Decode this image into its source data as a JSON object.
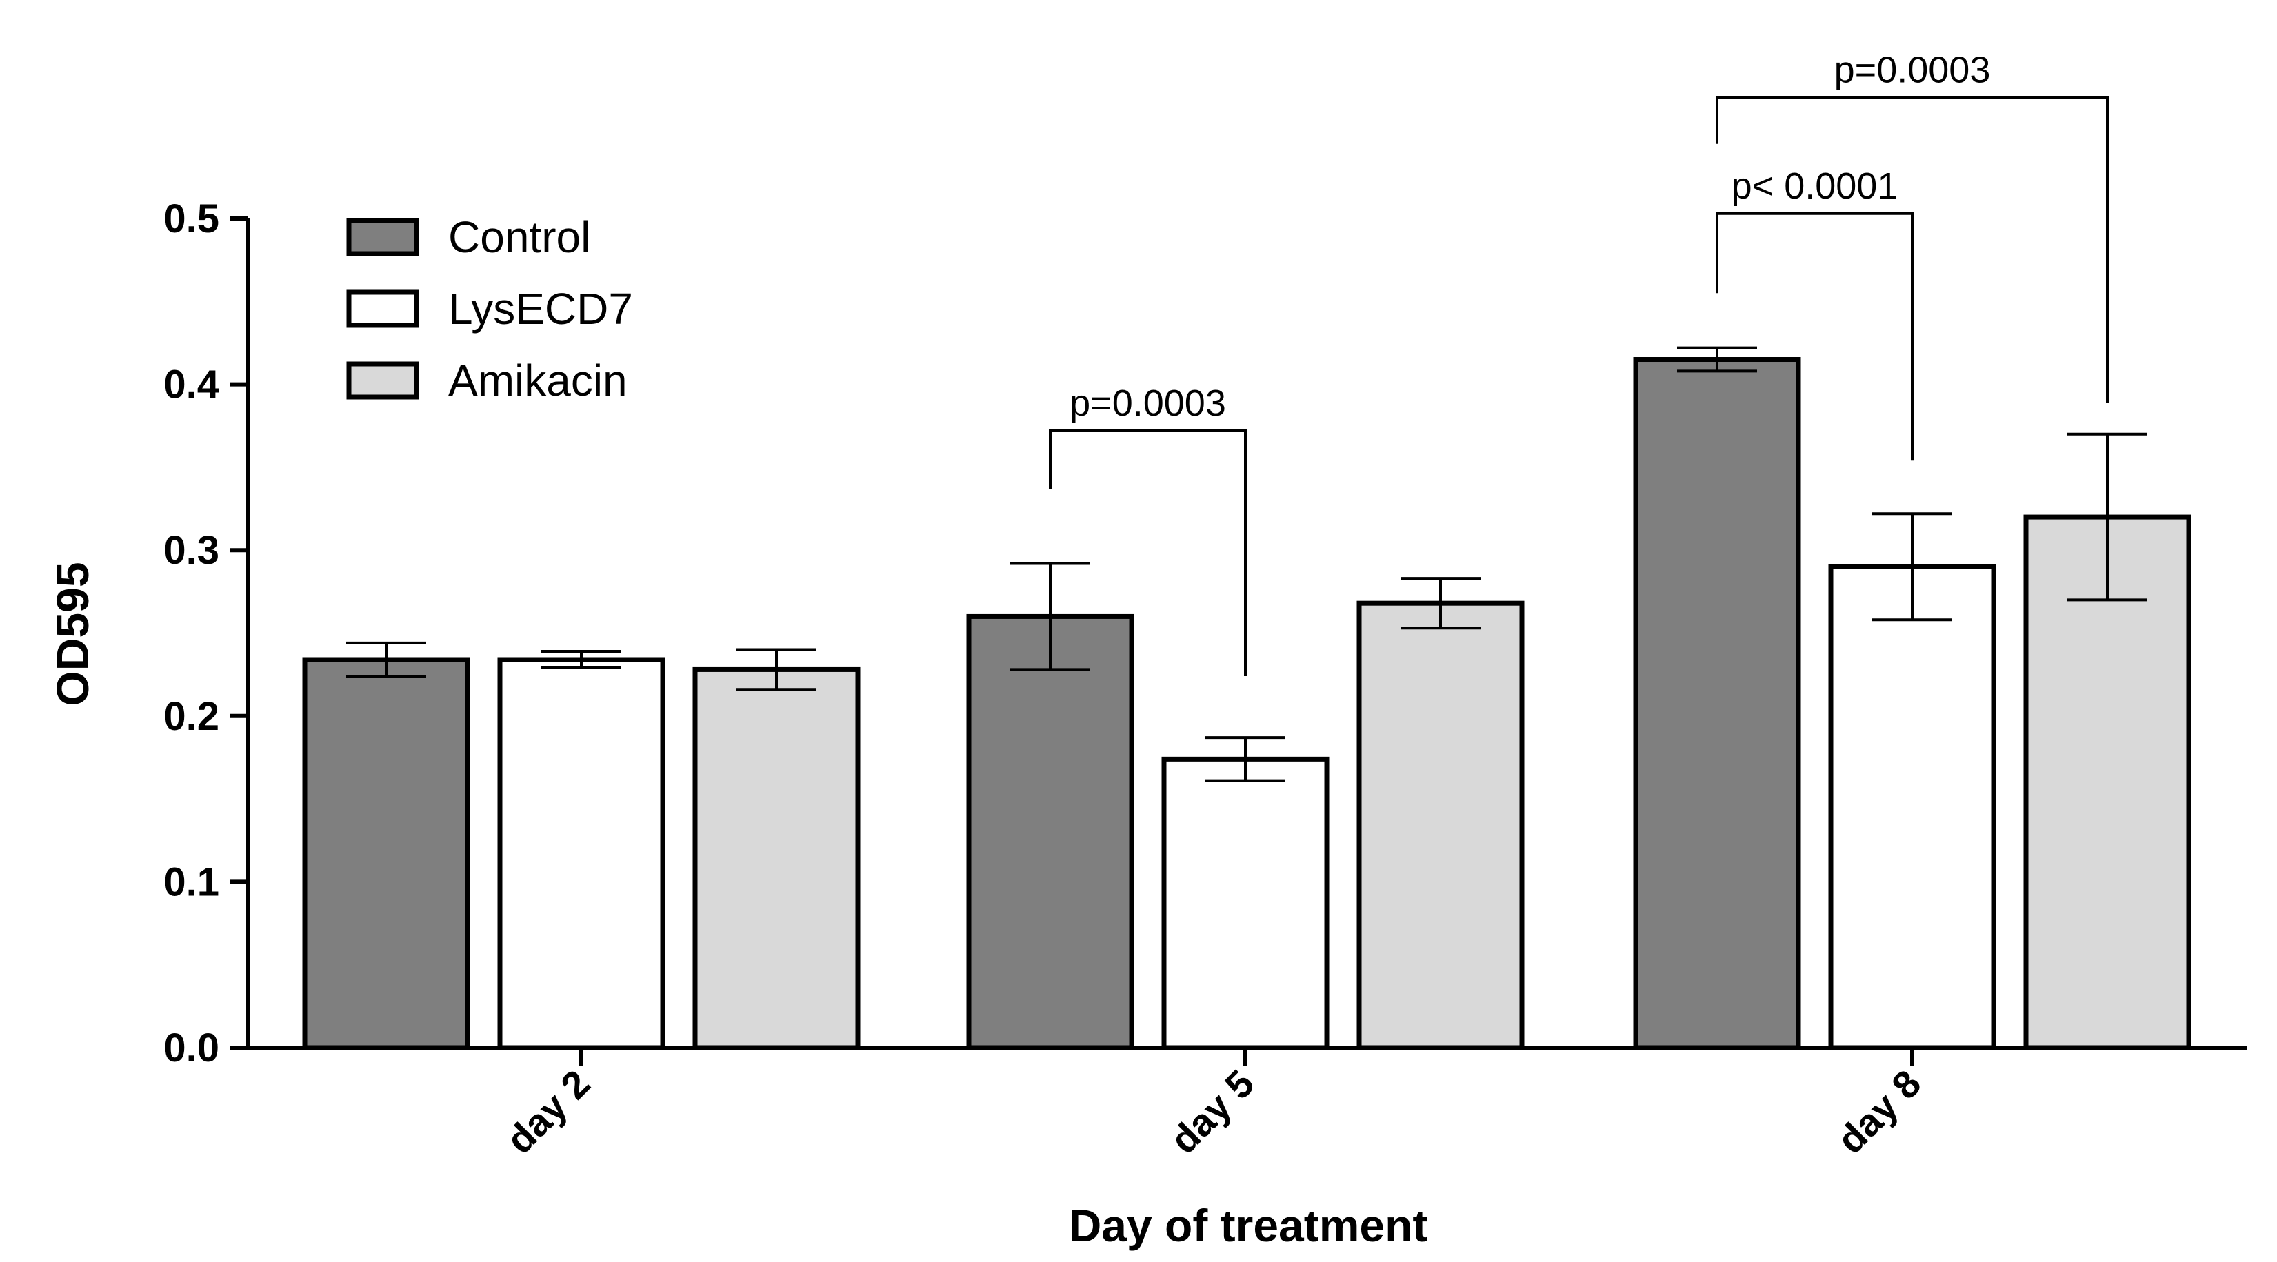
{
  "chart_data": {
    "type": "bar",
    "title": "",
    "xlabel": "Day of treatment",
    "ylabel": "OD595",
    "ylim": [
      0,
      0.5
    ],
    "yticks": [
      0.0,
      0.1,
      0.2,
      0.3,
      0.4,
      0.5
    ],
    "ytick_labels": [
      "0.0",
      "0.1",
      "0.2",
      "0.3",
      "0.4",
      "0.5"
    ],
    "categories": [
      "day 2",
      "day 5",
      "day 8"
    ],
    "legend_position": "top-left",
    "series": [
      {
        "name": "Control",
        "color": "#7f7f7f",
        "values": [
          0.234,
          0.26,
          0.415
        ],
        "errors": [
          0.01,
          0.032,
          0.007
        ]
      },
      {
        "name": "LysECD7",
        "color": "#ffffff",
        "values": [
          0.234,
          0.174,
          0.29
        ],
        "errors": [
          0.005,
          0.013,
          0.032
        ]
      },
      {
        "name": "Amikacin",
        "color": "#d9d9d9",
        "values": [
          0.228,
          0.268,
          0.32
        ],
        "errors": [
          0.012,
          0.015,
          0.05
        ]
      }
    ],
    "annotations": [
      {
        "label": "p=0.0003",
        "category": "day 5",
        "from_series": 0,
        "to_series": 1,
        "bracket_y": 0.372,
        "left_end": 0.337,
        "right_end": 0.224
      },
      {
        "label": "p< 0.0001",
        "category": "day 8",
        "from_series": 0,
        "to_series": 1,
        "bracket_y": 0.503,
        "left_end": 0.455,
        "right_end": 0.354
      },
      {
        "label": "p=0.0003",
        "category": "day 8",
        "from_series": 0,
        "to_series": 2,
        "bracket_y": 0.573,
        "left_end": 0.545,
        "right_end": 0.389
      }
    ]
  }
}
